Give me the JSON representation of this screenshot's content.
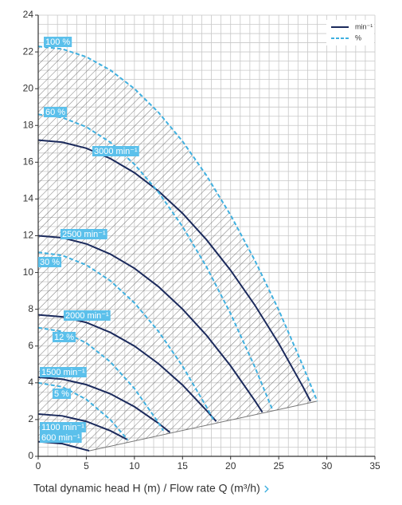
{
  "chart_data": {
    "type": "line",
    "x_label": "Total dynamic head H (m) / Flow rate Q (m³/h)",
    "xlim": [
      0,
      35
    ],
    "xticks": [
      0,
      5,
      10,
      15,
      20,
      25,
      30,
      35
    ],
    "ylim": [
      0,
      24
    ],
    "yticks": [
      0,
      2,
      4,
      6,
      8,
      10,
      12,
      14,
      16,
      18,
      20,
      22,
      24
    ],
    "grid": true,
    "grid_step_x": 1,
    "grid_step_y": 0.5,
    "legend_position": "upper right",
    "legend_items": [
      {
        "label": "min⁻¹",
        "color": "#1b2a5c",
        "dashed": false
      },
      {
        "label": "%",
        "color": "#3fb0e0",
        "dashed": true
      }
    ],
    "series": [
      {
        "name": "3000 min⁻¹",
        "color": "#1b2a5c",
        "dashed": false,
        "x": [
          0,
          2.5,
          5,
          7.5,
          10,
          12.5,
          15,
          17.5,
          20,
          22.5,
          25,
          27.5,
          28.3
        ],
        "values": [
          17.2,
          17.09,
          16.76,
          16.2,
          15.43,
          14.43,
          13.22,
          11.78,
          10.12,
          8.24,
          6.14,
          3.8,
          3.0
        ]
      },
      {
        "name": "2500 min⁻¹",
        "color": "#1b2a5c",
        "dashed": false,
        "x": [
          0,
          2.5,
          5,
          7.5,
          10,
          12.5,
          15,
          17.5,
          20,
          22.5,
          23.3
        ],
        "values": [
          12,
          11.89,
          11.56,
          11.0,
          10.23,
          9.23,
          8.01,
          6.58,
          4.92,
          3.04,
          2.4
        ]
      },
      {
        "name": "2000 min⁻¹",
        "color": "#1b2a5c",
        "dashed": false,
        "x": [
          0,
          2.5,
          5,
          7.5,
          10,
          12.5,
          15,
          17.5,
          18.5
        ],
        "values": [
          7.7,
          7.59,
          7.28,
          6.74,
          6.0,
          5.04,
          3.88,
          2.49,
          1.9
        ]
      },
      {
        "name": "1500 min⁻¹",
        "color": "#1b2a5c",
        "dashed": false,
        "x": [
          0,
          2.5,
          5,
          7.5,
          10,
          12.5,
          13.7
        ],
        "values": [
          4.3,
          4.2,
          3.9,
          3.4,
          2.7,
          1.8,
          1.3
        ]
      },
      {
        "name": "1100 min⁻¹",
        "color": "#1b2a5c",
        "dashed": false,
        "x": [
          0,
          2.5,
          5,
          7.5,
          9.3
        ],
        "values": [
          2.3,
          2.2,
          1.9,
          1.39,
          0.9
        ]
      },
      {
        "name": "600 min⁻¹",
        "color": "#1b2a5c",
        "dashed": false,
        "x": [
          0,
          2.5,
          5.3
        ],
        "values": [
          0.8,
          0.69,
          0.3
        ]
      },
      {
        "name": "100 %",
        "color": "#3fb0e0",
        "dashed": true,
        "x": [
          0,
          2.5,
          5,
          7.5,
          10,
          12.5,
          15,
          17.5,
          20,
          22.5,
          25,
          27.5,
          29
        ],
        "values": [
          22.3,
          22.16,
          21.73,
          21.01,
          20.0,
          18.71,
          17.14,
          15.27,
          13.12,
          10.68,
          7.96,
          4.94,
          3.0
        ]
      },
      {
        "name": "60 %",
        "color": "#3fb0e0",
        "dashed": true,
        "x": [
          0,
          2.5,
          5,
          7.5,
          10,
          12.5,
          15,
          17.5,
          20,
          22.5,
          24.3
        ],
        "values": [
          18.6,
          18.43,
          17.92,
          17.08,
          15.89,
          14.37,
          12.5,
          10.3,
          7.76,
          4.88,
          2.6
        ]
      },
      {
        "name": "30 %",
        "color": "#3fb0e0",
        "dashed": true,
        "x": [
          0,
          2.5,
          5,
          7.5,
          10,
          12.5,
          15,
          17.5,
          18.2
        ],
        "values": [
          11.1,
          10.93,
          10.41,
          9.55,
          8.35,
          6.8,
          4.91,
          2.68,
          2.0
        ]
      },
      {
        "name": "12 %",
        "color": "#3fb0e0",
        "dashed": true,
        "x": [
          0,
          2.5,
          5,
          7.5,
          10,
          12.5,
          13
        ],
        "values": [
          7.0,
          6.79,
          6.17,
          5.14,
          3.69,
          1.83,
          1.4
        ]
      },
      {
        "name": "5 %",
        "color": "#3fb0e0",
        "dashed": true,
        "x": [
          0,
          2.5,
          5,
          7.5,
          9.3
        ],
        "values": [
          4.0,
          3.78,
          3.1,
          1.99,
          0.9
        ]
      }
    ]
  }
}
